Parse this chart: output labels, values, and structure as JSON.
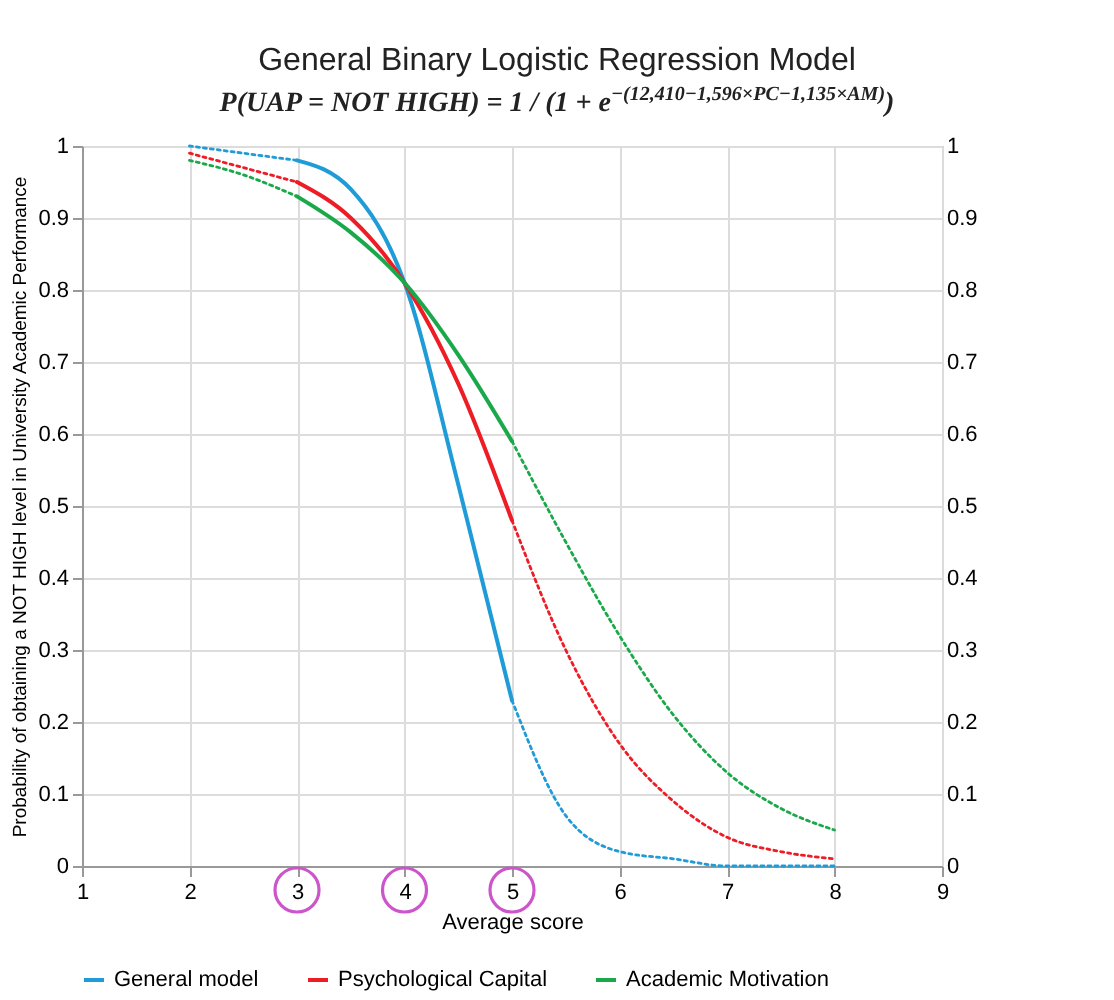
{
  "chart_data": {
    "type": "line",
    "title": "General Binary Logistic Regression Model",
    "subtitle": "P(UAP = NOT HIGH) = 1 / (1 + e$^{−(12,410−1,596×PC−1,135×AM)}$)",
    "xlabel": "Average score",
    "ylabel": "Probability of obtaining a NOT HIGH level in University Academic Performance",
    "xlim": [
      1,
      9
    ],
    "xticks": [
      1,
      2,
      3,
      4,
      5,
      6,
      7,
      8,
      9
    ],
    "ylim": [
      0,
      1
    ],
    "yticks": [
      0,
      0.1,
      0.2,
      0.3,
      0.4,
      0.5,
      0.6,
      0.7,
      0.8,
      0.9,
      1
    ],
    "y2lim": [
      0,
      1
    ],
    "y2ticks": [
      0,
      0.1,
      0.2,
      0.3,
      0.4,
      0.5,
      0.6,
      0.7,
      0.8,
      0.9,
      1
    ],
    "grid": true,
    "legend": "bottom",
    "series": [
      {
        "name": "General model",
        "color": "#1f9bd7",
        "line_style": "solid",
        "x": [
          3,
          3.5,
          4,
          4.5,
          5
        ],
        "values": [
          0.98,
          0.94,
          0.81,
          0.53,
          0.23
        ]
      },
      {
        "name": "Psychological Capital",
        "color": "#ee1c25",
        "line_style": "solid",
        "x": [
          3,
          3.5,
          4,
          4.5,
          5
        ],
        "values": [
          0.95,
          0.9,
          0.81,
          0.67,
          0.48
        ]
      },
      {
        "name": "Academic Motivation",
        "color": "#1aa84a",
        "line_style": "solid",
        "x": [
          3,
          3.5,
          4,
          4.5,
          5
        ],
        "values": [
          0.93,
          0.88,
          0.81,
          0.71,
          0.59
        ]
      },
      {
        "color": "#1f9bd7",
        "line_style": "dotted",
        "x": [
          2,
          2.5,
          3
        ],
        "values": [
          1.0,
          0.99,
          0.98
        ]
      },
      {
        "color": "#1f9bd7",
        "line_style": "dotted",
        "x": [
          5,
          5.5,
          6,
          6.5,
          7,
          7.5,
          8
        ],
        "values": [
          0.23,
          0.07,
          0.02,
          0.01,
          0,
          0,
          0
        ]
      },
      {
        "color": "#ee1c25",
        "line_style": "dotted",
        "x": [
          2,
          2.5,
          3
        ],
        "values": [
          0.99,
          0.97,
          0.95
        ]
      },
      {
        "color": "#ee1c25",
        "line_style": "dotted",
        "x": [
          5,
          5.5,
          6,
          6.5,
          7,
          7.5,
          8
        ],
        "values": [
          0.48,
          0.3,
          0.17,
          0.09,
          0.04,
          0.02,
          0.01
        ]
      },
      {
        "color": "#1aa84a",
        "line_style": "dotted",
        "x": [
          2,
          2.5,
          3
        ],
        "values": [
          0.98,
          0.96,
          0.93
        ]
      },
      {
        "color": "#1aa84a",
        "line_style": "dotted",
        "x": [
          5,
          5.5,
          6,
          6.5,
          7,
          7.5,
          8
        ],
        "values": [
          0.59,
          0.45,
          0.32,
          0.21,
          0.13,
          0.08,
          0.05
        ]
      }
    ]
  }
}
